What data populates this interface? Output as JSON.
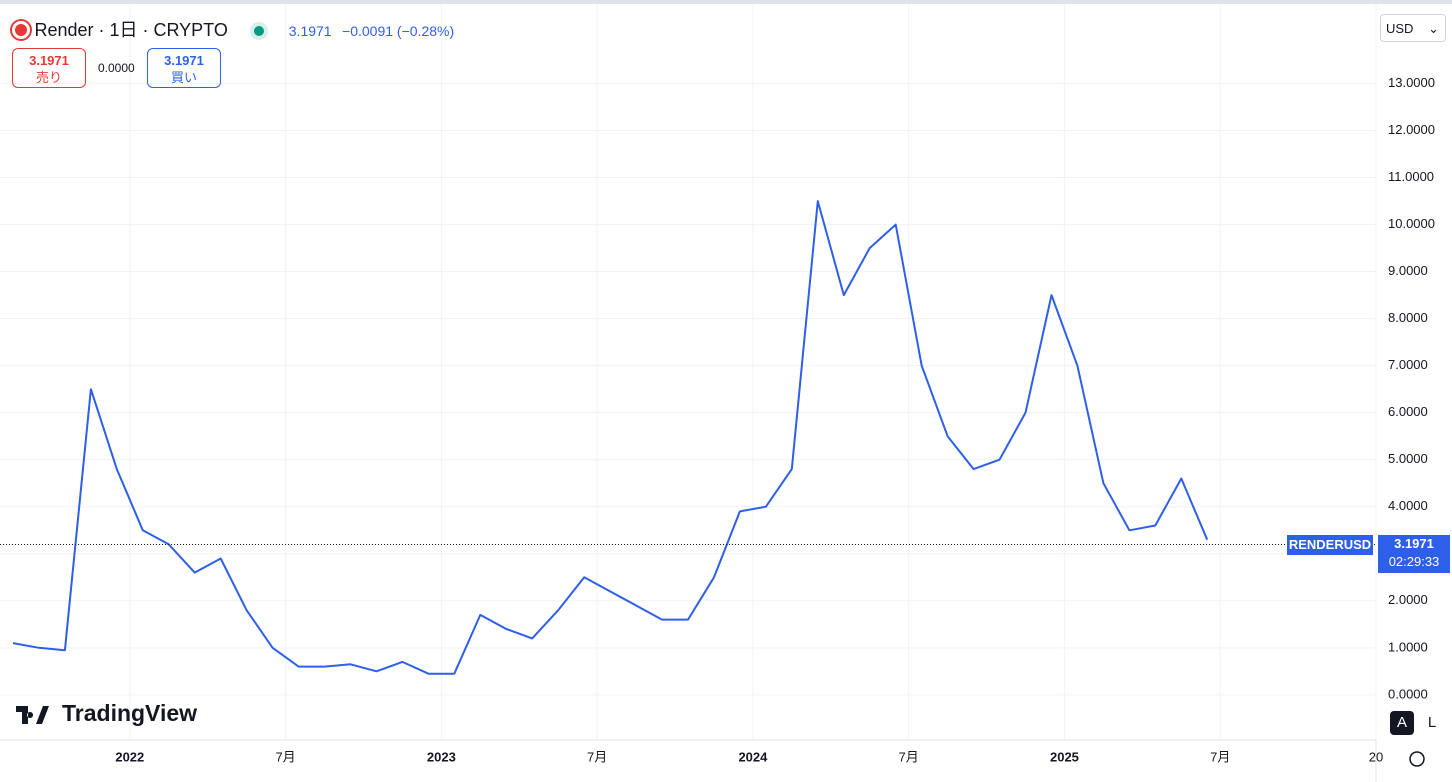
{
  "header": {
    "symbol": "Render · 1日 · CRYPTO",
    "change": "−0.0091 (−0.28%)",
    "sell_label": "売り",
    "buy_label": "買い",
    "spread": "0.0000",
    "currency": "USD",
    "brand": "TradingView",
    "auto_button": "A",
    "log_button": "L",
    "countdown": "02:29:33"
  },
  "chart_data": {
    "type": "line",
    "x": [
      "2021-08",
      "2021-09",
      "2021-10",
      "2021-11",
      "2021-12",
      "2022-01",
      "2022-02",
      "2022-03",
      "2022-04",
      "2022-05",
      "2022-06",
      "2022-07",
      "2022-08",
      "2022-09",
      "2022-10",
      "2022-11",
      "2022-12",
      "2023-01",
      "2023-02",
      "2023-03",
      "2023-04",
      "2023-05",
      "2023-06",
      "2023-07",
      "2023-08",
      "2023-09",
      "2023-10",
      "2023-11",
      "2023-12",
      "2024-01",
      "2024-02",
      "2024-03",
      "2024-04",
      "2024-05",
      "2024-06",
      "2024-07",
      "2024-08",
      "2024-09",
      "2024-10",
      "2024-11",
      "2024-12",
      "2025-01",
      "2025-02",
      "2025-03",
      "2025-04",
      "2025-05",
      "2025-06"
    ],
    "series": [
      {
        "name": "RENDERUSD",
        "color": "#2e5fe8",
        "values": [
          1.1,
          1.0,
          0.95,
          6.5,
          4.8,
          3.5,
          3.2,
          2.6,
          2.9,
          1.8,
          1.0,
          0.6,
          0.6,
          0.65,
          0.5,
          0.7,
          0.45,
          0.45,
          1.7,
          1.4,
          1.2,
          1.8,
          2.5,
          2.2,
          1.9,
          1.6,
          1.6,
          2.5,
          3.9,
          4.0,
          4.8,
          10.5,
          8.5,
          9.5,
          10.0,
          7.0,
          5.5,
          4.8,
          5.0,
          6.0,
          8.5,
          7.0,
          4.5,
          3.5,
          3.6,
          4.6,
          3.3
        ]
      }
    ],
    "last_price": 3.1971,
    "xlim": [
      "2021-08",
      "2026-01"
    ],
    "xticks": [
      {
        "value": "2022-01",
        "label": "2022"
      },
      {
        "value": "2022-07",
        "label": "7月"
      },
      {
        "value": "2023-01",
        "label": "2023"
      },
      {
        "value": "2023-07",
        "label": "7月"
      },
      {
        "value": "2024-01",
        "label": "2024"
      },
      {
        "value": "2024-07",
        "label": "7月"
      },
      {
        "value": "2025-01",
        "label": "2025"
      },
      {
        "value": "2025-07",
        "label": "7月"
      },
      {
        "value": "2026-01",
        "label": "20"
      }
    ],
    "ylim": [
      -0.96,
      14.69
    ],
    "yticks": [
      {
        "value": 0,
        "label": "0.0000"
      },
      {
        "value": 1,
        "label": "1.0000"
      },
      {
        "value": 2,
        "label": "2.0000"
      },
      {
        "value": 3,
        "label": "3.0000"
      },
      {
        "value": 4,
        "label": "4.0000"
      },
      {
        "value": 5,
        "label": "5.0000"
      },
      {
        "value": 6,
        "label": "6.0000"
      },
      {
        "value": 7,
        "label": "7.0000"
      },
      {
        "value": 8,
        "label": "8.0000"
      },
      {
        "value": 9,
        "label": "9.0000"
      },
      {
        "value": 10,
        "label": "10.0000"
      },
      {
        "value": 11,
        "label": "11.0000"
      },
      {
        "value": 12,
        "label": "12.0000"
      },
      {
        "value": 13,
        "label": "13.0000"
      }
    ],
    "grid": true
  }
}
